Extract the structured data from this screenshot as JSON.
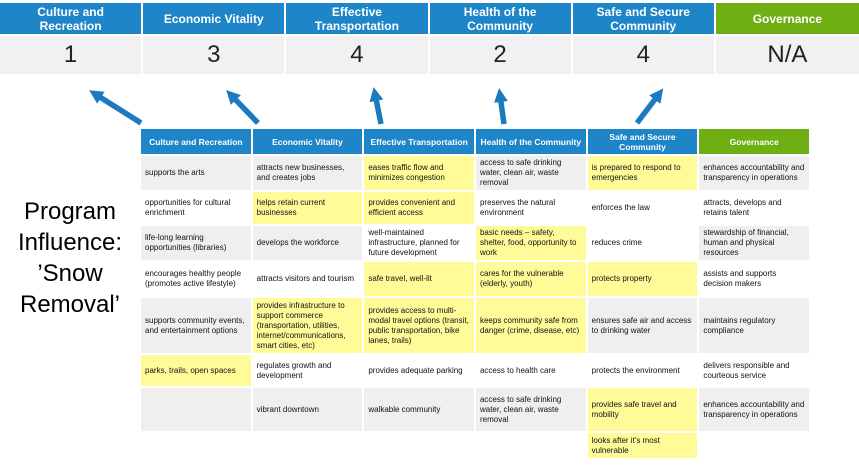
{
  "program_label": {
    "lines": [
      "Program",
      "Influence:",
      "’Snow",
      "Removal’"
    ]
  },
  "top": {
    "columns": [
      {
        "label": "Culture and Recreation",
        "score": "1",
        "theme": "blue"
      },
      {
        "label": "Economic Vitality",
        "score": "3",
        "theme": "blue"
      },
      {
        "label": "Effective Transportation",
        "score": "4",
        "theme": "blue"
      },
      {
        "label": "Health of the Community",
        "score": "2",
        "theme": "blue"
      },
      {
        "label": "Safe and Secure Community",
        "score": "4",
        "theme": "blue"
      },
      {
        "label": "Governance",
        "score": "N/A",
        "theme": "green"
      }
    ]
  },
  "matrix": {
    "columns": [
      {
        "label": "Culture and Recreation",
        "theme": "blue"
      },
      {
        "label": "Economic Vitality",
        "theme": "blue"
      },
      {
        "label": "Effective Transportation",
        "theme": "blue"
      },
      {
        "label": "Health of the Community",
        "theme": "blue"
      },
      {
        "label": "Safe and Secure Community",
        "theme": "blue"
      },
      {
        "label": "Governance",
        "theme": "green"
      }
    ],
    "rows": [
      [
        {
          "text": "supports the arts",
          "bg": "g"
        },
        {
          "text": "attracts new businesses, and creates jobs",
          "bg": "g"
        },
        {
          "text": "eases traffic flow and minimizes congestion",
          "bg": "y"
        },
        {
          "text": "access to safe drinking water, clean air, waste removal",
          "bg": "g"
        },
        {
          "text": "is prepared to respond to emergencies",
          "bg": "y"
        },
        {
          "text": "enhances accountability and transparency in operations",
          "bg": "g"
        }
      ],
      [
        {
          "text": "opportunities for cultural enrichment",
          "bg": "w"
        },
        {
          "text": "helps retain current businesses",
          "bg": "y"
        },
        {
          "text": "provides convenient and efficient access",
          "bg": "y"
        },
        {
          "text": "preserves the natural environment",
          "bg": "w"
        },
        {
          "text": "enforces the law",
          "bg": "w"
        },
        {
          "text": "attracts, develops and retains talent",
          "bg": "w"
        }
      ],
      [
        {
          "text": "life-long learning opportunities (libraries)",
          "bg": "g"
        },
        {
          "text": "develops the workforce",
          "bg": "g"
        },
        {
          "text": "well-maintained infrastructure, planned for future development",
          "bg": "w"
        },
        {
          "text": "basic needs – safety, shelter, food, opportunity to work",
          "bg": "y"
        },
        {
          "text": "reduces crime",
          "bg": "w"
        },
        {
          "text": "stewardship of financial, human and physical resources",
          "bg": "g"
        }
      ],
      [
        {
          "text": "encourages healthy people (promotes active lifestyle)",
          "bg": "w"
        },
        {
          "text": "attracts visitors and tourism",
          "bg": "w"
        },
        {
          "text": "safe travel, well-lit",
          "bg": "y"
        },
        {
          "text": "cares for the vulnerable (elderly, youth)",
          "bg": "y"
        },
        {
          "text": "protects property",
          "bg": "y"
        },
        {
          "text": "assists and supports decision makers",
          "bg": "w"
        }
      ],
      [
        {
          "text": "supports community events, and entertainment options",
          "bg": "g"
        },
        {
          "text": "provides infrastructure to support commerce (transportation, utilities, internet/communications, smart cities, etc)",
          "bg": "y"
        },
        {
          "text": "provides access to multi-modal travel options (transit, public transportation, bike lanes, trails)",
          "bg": "y"
        },
        {
          "text": "keeps community safe from danger (crime, disease, etc)",
          "bg": "y"
        },
        {
          "text": "ensures safe air and access to drinking water",
          "bg": "g"
        },
        {
          "text": "maintains regulatory compliance",
          "bg": "g"
        }
      ],
      [
        {
          "text": "parks, trails, open spaces",
          "bg": "y"
        },
        {
          "text": "regulates growth and development",
          "bg": "w"
        },
        {
          "text": "provides adequate parking",
          "bg": "w"
        },
        {
          "text": "access to health care",
          "bg": "w"
        },
        {
          "text": "protects the environment",
          "bg": "w"
        },
        {
          "text": "delivers responsible and courteous service",
          "bg": "w"
        }
      ],
      [
        {
          "text": "",
          "bg": "g"
        },
        {
          "text": "vibrant downtown",
          "bg": "g"
        },
        {
          "text": "walkable community",
          "bg": "g"
        },
        {
          "text": "access to safe drinking water, clean air, waste removal",
          "bg": "g"
        },
        {
          "text": "provides safe travel and mobility",
          "bg": "y"
        },
        {
          "text": "enhances accountability and transparency in operations",
          "bg": "g"
        }
      ],
      [
        {
          "text": "",
          "bg": "w"
        },
        {
          "text": "",
          "bg": "w"
        },
        {
          "text": "",
          "bg": "w"
        },
        {
          "text": "",
          "bg": "w"
        },
        {
          "text": "looks after it's most vulnerable",
          "bg": "y"
        },
        {
          "text": "",
          "bg": "w"
        }
      ]
    ]
  },
  "colors": {
    "blue": "#1E86C8",
    "green": "#6FAF13",
    "yellow": "#FFFB99",
    "gray": "#EFEFEF",
    "scorebg": "#F1F1F2",
    "arrow": "#1C7ABF"
  }
}
